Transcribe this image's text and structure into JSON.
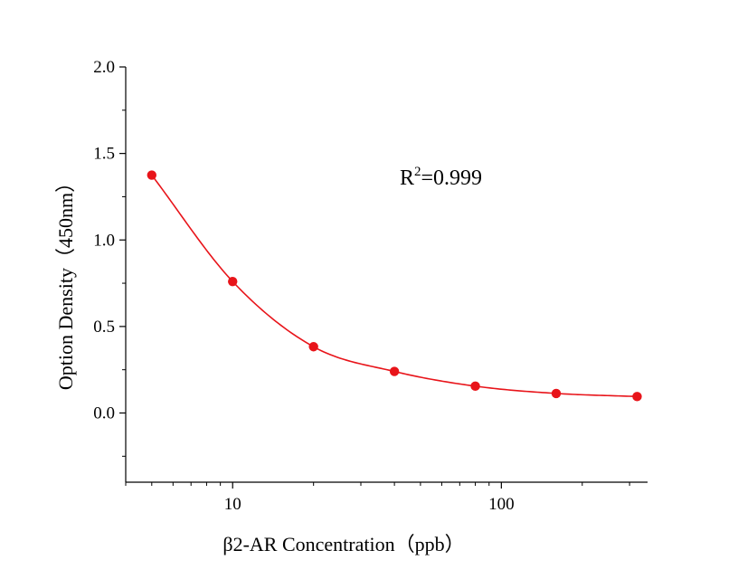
{
  "chart_data": {
    "type": "scatter",
    "title": "",
    "xlabel": "β2-AR Concentration（ppb）",
    "ylabel": "Option Density（450nm）",
    "x_scale": "log",
    "xlim": [
      4,
      350
    ],
    "ylim": [
      -0.4,
      2.0
    ],
    "x_ticks": [
      10,
      100
    ],
    "x_tick_labels": [
      "10",
      "100"
    ],
    "y_ticks": [
      0.0,
      0.5,
      1.0,
      1.5,
      2.0
    ],
    "y_tick_labels": [
      "0.0",
      "0.5",
      "1.0",
      "1.5",
      "2.0"
    ],
    "grid": false,
    "legend": "none",
    "series": [
      {
        "x": [
          5,
          10,
          20,
          40,
          80,
          160,
          320
        ],
        "y": [
          1.375,
          0.76,
          0.383,
          0.24,
          0.155,
          0.113,
          0.095
        ],
        "color": "#e8141a",
        "fit": "curve"
      }
    ],
    "annotation_prefix": "R",
    "annotation_sup": "2",
    "annotation_suffix": "=0.999"
  }
}
